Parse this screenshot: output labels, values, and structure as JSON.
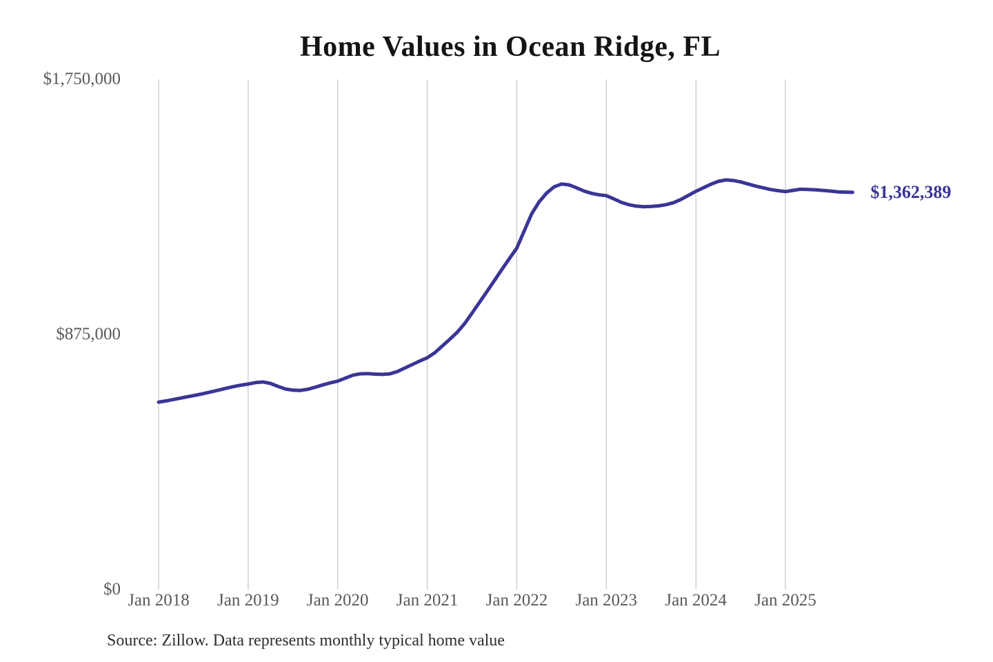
{
  "colors": {
    "line": "#3a3596",
    "grid": "#c9c9c9",
    "axis_text": "#595959",
    "title_text": "#141414",
    "source_text": "#2e2e2e",
    "background": "#ffffff"
  },
  "chart_data": {
    "type": "line",
    "title": "Home Values in Ocean Ridge, FL",
    "source": "Source: Zillow. Data represents monthly typical home value",
    "xlabel": "",
    "ylabel": "",
    "legend": "none",
    "grid": "vertical-only",
    "x_freq": "monthly",
    "x_range": [
      "2018-01",
      "2025-10"
    ],
    "ylim": [
      0,
      1750000
    ],
    "yticks": [
      {
        "value": 0,
        "label": "$0"
      },
      {
        "value": 875000,
        "label": "$875,000"
      },
      {
        "value": 1750000,
        "label": "$1,750,000"
      }
    ],
    "xticks": [
      {
        "month_index": 0,
        "label": "Jan 2018"
      },
      {
        "month_index": 12,
        "label": "Jan 2019"
      },
      {
        "month_index": 24,
        "label": "Jan 2020"
      },
      {
        "month_index": 36,
        "label": "Jan 2021"
      },
      {
        "month_index": 48,
        "label": "Jan 2022"
      },
      {
        "month_index": 60,
        "label": "Jan 2023"
      },
      {
        "month_index": 72,
        "label": "Jan 2024"
      },
      {
        "month_index": 84,
        "label": "Jan 2025"
      }
    ],
    "values": [
      643000,
      647000,
      652000,
      657000,
      662000,
      667000,
      672000,
      678000,
      684000,
      690000,
      696000,
      701000,
      705000,
      710000,
      712000,
      707000,
      697000,
      688000,
      684000,
      683000,
      687000,
      694000,
      702000,
      709000,
      715000,
      725000,
      735000,
      740000,
      741000,
      739000,
      738000,
      740000,
      748000,
      760000,
      772000,
      784000,
      795000,
      812000,
      835000,
      858000,
      882000,
      912000,
      948000,
      985000,
      1022000,
      1060000,
      1098000,
      1135000,
      1171000,
      1230000,
      1289000,
      1330000,
      1360000,
      1381000,
      1391000,
      1388000,
      1378000,
      1367000,
      1359000,
      1354000,
      1351000,
      1340000,
      1328000,
      1320000,
      1315000,
      1313000,
      1314000,
      1316000,
      1320000,
      1327000,
      1338000,
      1352000,
      1366000,
      1378000,
      1390000,
      1400000,
      1405000,
      1403000,
      1398000,
      1391000,
      1384000,
      1378000,
      1372000,
      1368000,
      1365000,
      1369000,
      1373000,
      1372000,
      1371000,
      1369000,
      1367000,
      1364000,
      1363000,
      1362389
    ],
    "end_value": 1362389,
    "end_label": "$1,362,389"
  }
}
